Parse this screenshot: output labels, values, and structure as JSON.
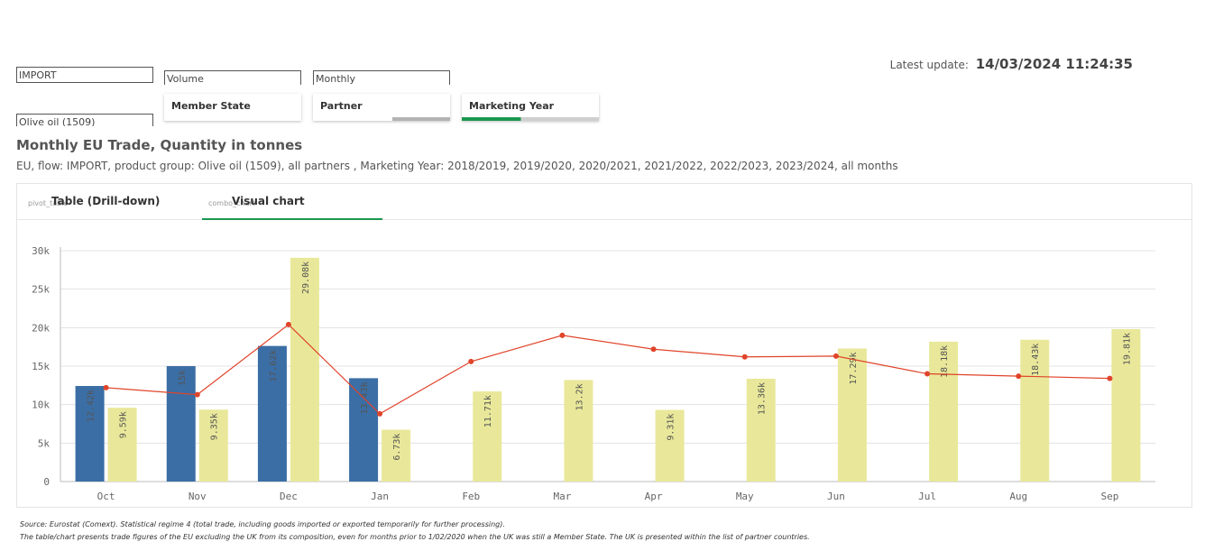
{
  "filters": {
    "flow_value": "IMPORT",
    "product_value": "Olive oil (1509)",
    "measure_value": "Volume",
    "period_value": "Monthly"
  },
  "filter_tabs": [
    {
      "label": "Member State"
    },
    {
      "label": "Partner"
    },
    {
      "label": "Marketing Year"
    }
  ],
  "latest_update": {
    "label": "Latest update:",
    "value": "14/03/2024 11:24:35"
  },
  "title": "Monthly EU Trade, Quantity in tonnes",
  "subtitle": "EU, flow: IMPORT, product group: Olive oil (1509), all partners , Marketing Year: 2018/2019, 2019/2020, 2020/2021, 2021/2022, 2022/2023, 2023/2024, all months",
  "view_tabs": {
    "table": {
      "small": "pivot_table",
      "label": "Table (Drill-down)"
    },
    "chart": {
      "small": "combo_chart",
      "label": "Visual chart"
    }
  },
  "colors": {
    "series_blue": "#3b6ea5",
    "series_yellow": "#e9e89a",
    "line_red": "#e0442a",
    "accent_green": "#1a9850"
  },
  "chart_data": {
    "type": "bar",
    "categories": [
      "Oct",
      "Nov",
      "Dec",
      "Jan",
      "Feb",
      "Mar",
      "Apr",
      "May",
      "Jun",
      "Jul",
      "Aug",
      "Sep"
    ],
    "series": [
      {
        "type": "bar",
        "values": [
          12420,
          15000,
          17620,
          13430,
          null,
          null,
          null,
          null,
          null,
          null,
          null,
          null
        ],
        "labels": [
          "12.42k",
          "15k",
          "17.62k",
          "13.43k",
          "",
          "",
          "",
          "",
          "",
          "",
          "",
          ""
        ]
      },
      {
        "type": "bar",
        "values": [
          9590,
          9350,
          29080,
          6730,
          11710,
          13200,
          9310,
          13360,
          17290,
          18180,
          18430,
          19810
        ],
        "labels": [
          "9.59k",
          "9.35k",
          "29.08k",
          "6.73k",
          "11.71k",
          "13.2k",
          "9.31k",
          "13.36k",
          "17.29k",
          "18.18k",
          "18.43k",
          "19.81k"
        ]
      },
      {
        "type": "line",
        "values": [
          12200,
          11300,
          20400,
          8800,
          15600,
          19000,
          17200,
          16200,
          16300,
          14000,
          13700,
          13400
        ]
      }
    ],
    "ylim": [
      0,
      30000
    ],
    "yticks": [
      0,
      5000,
      10000,
      15000,
      20000,
      25000,
      30000
    ],
    "ytick_labels": [
      "0",
      "5k",
      "10k",
      "15k",
      "20k",
      "25k",
      "30k"
    ],
    "grid": true
  },
  "footer": {
    "source": "Source: Eurostat (Comext). Statistical regime 4 (total trade, including goods imported or exported temporarily for further processing).",
    "note": "The table/chart presents trade figures of the EU excluding the UK from its composition, even for months prior to 1/02/2020 when the UK was still a Member State. The UK is presented within the list of partner countries."
  }
}
